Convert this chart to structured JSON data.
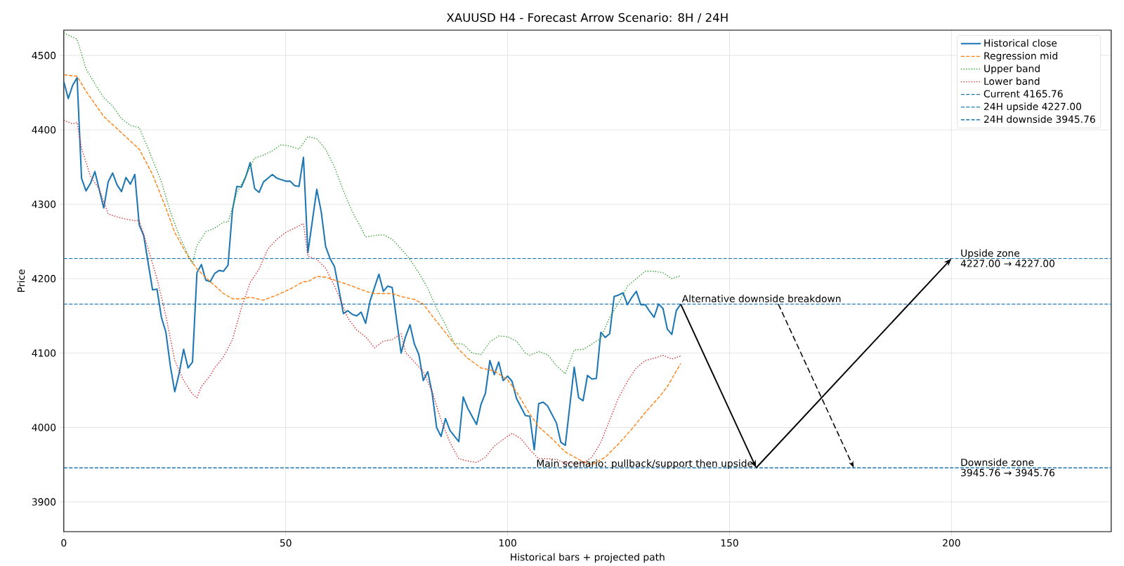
{
  "chart_data": {
    "type": "line",
    "title": "XAUUSD H4 - Forecast Arrow Scenario: 8H / 24H",
    "xlabel": "Historical bars + projected path",
    "ylabel": "Price",
    "xlim": [
      0,
      236
    ],
    "ylim": [
      3860,
      4534
    ],
    "xticks": [
      0,
      50,
      100,
      150,
      200
    ],
    "yticks": [
      3900,
      4000,
      4100,
      4200,
      4300,
      4400,
      4500
    ],
    "grid": true,
    "legend": "top right",
    "series": [
      {
        "name": "Historical close",
        "color": "#1f77b4",
        "line_style": "solid",
        "x": [
          0,
          1,
          2,
          3,
          4,
          5,
          6,
          7,
          9,
          10,
          11,
          12,
          13,
          14,
          15,
          16,
          17,
          18,
          20,
          21,
          22,
          23,
          24,
          25,
          26,
          27,
          28,
          29,
          30,
          31,
          32,
          33,
          34,
          35,
          36,
          37,
          38,
          39,
          40,
          41,
          42,
          43,
          44,
          45,
          47,
          48,
          50,
          51,
          52,
          53,
          54,
          55,
          57,
          58,
          59,
          60,
          61,
          62,
          63,
          64,
          65,
          66,
          67,
          68,
          69,
          71,
          72,
          73,
          74,
          76,
          77,
          78,
          79,
          80,
          81,
          82,
          83,
          84,
          85,
          86,
          87,
          89,
          90,
          91,
          93,
          94,
          95,
          96,
          97,
          98,
          99,
          100,
          101,
          102,
          104,
          105,
          106,
          107,
          108,
          109,
          111,
          112,
          113,
          115,
          116,
          117,
          118,
          119,
          120,
          121,
          122,
          123,
          124,
          125,
          126,
          127,
          128,
          129,
          130,
          131,
          132,
          133,
          134,
          135,
          136,
          137,
          138,
          139
        ],
        "values": [
          4465,
          4442,
          4460,
          4470,
          4335,
          4318,
          4328,
          4344,
          4295,
          4330,
          4342,
          4326,
          4317,
          4336,
          4327,
          4340,
          4272,
          4258,
          4185,
          4186,
          4148,
          4128,
          4083,
          4048,
          4073,
          4105,
          4080,
          4088,
          4208,
          4219,
          4198,
          4196,
          4207,
          4211,
          4210,
          4218,
          4292,
          4324,
          4323,
          4337,
          4356,
          4321,
          4316,
          4330,
          4340,
          4335,
          4331,
          4331,
          4325,
          4324,
          4363,
          4235,
          4320,
          4290,
          4243,
          4227,
          4216,
          4185,
          4153,
          4157,
          4152,
          4150,
          4155,
          4140,
          4170,
          4206,
          4183,
          4190,
          4188,
          4100,
          4122,
          4138,
          4112,
          4098,
          4063,
          4075,
          4046,
          4000,
          3988,
          4012,
          3996,
          3981,
          4041,
          4026,
          4004,
          4031,
          4046,
          4090,
          4071,
          4088,
          4063,
          4069,
          4062,
          4039,
          4016,
          4015,
          3970,
          4032,
          4034,
          4029,
          4006,
          3980,
          3976,
          4081,
          4040,
          4036,
          4070,
          4065,
          4066,
          4128,
          4121,
          4126,
          4176,
          4178,
          4181,
          4165,
          4175,
          4183,
          4165,
          4165,
          4156,
          4148,
          4166,
          4160,
          4132,
          4125,
          4157,
          4165.76
        ]
      },
      {
        "name": "Regression mid",
        "color": "#ff7f0e",
        "line_style": "dashed",
        "x": [
          0,
          3,
          5,
          9,
          13,
          17,
          20,
          23,
          25,
          28,
          30,
          33,
          36,
          38,
          40,
          42,
          45,
          48,
          51,
          54,
          55,
          57,
          59,
          62,
          65,
          68,
          70,
          74,
          76,
          79,
          81,
          83,
          85,
          89,
          91,
          94,
          97,
          100,
          102,
          105,
          107,
          110,
          113,
          117,
          119,
          122,
          125,
          128,
          131,
          134,
          136,
          139
        ],
        "values": [
          4474,
          4472,
          4452,
          4418,
          4396,
          4374,
          4340,
          4295,
          4262,
          4230,
          4213,
          4196,
          4180,
          4173,
          4173,
          4175,
          4171,
          4178,
          4186,
          4196,
          4196,
          4203,
          4202,
          4196,
          4190,
          4183,
          4180,
          4180,
          4176,
          4172,
          4166,
          4150,
          4135,
          4105,
          4093,
          4080,
          4076,
          4064,
          4048,
          4018,
          4001,
          3985,
          3967,
          3954,
          3950,
          3960,
          3978,
          3998,
          4020,
          4040,
          4055,
          4086
        ]
      },
      {
        "name": "Upper band",
        "color": "#2ca02c",
        "line_style": "dotted",
        "x": [
          0,
          3,
          5,
          7,
          9,
          11,
          13,
          15,
          17,
          19,
          22,
          24,
          26,
          28,
          29,
          30,
          32,
          34,
          36,
          37,
          39,
          41,
          43,
          45,
          47,
          49,
          51,
          53,
          55,
          57,
          59,
          61,
          63,
          65,
          67,
          68,
          70,
          72,
          74,
          76,
          78,
          80,
          82,
          84,
          86,
          88,
          90,
          92,
          94,
          96,
          98,
          100,
          102,
          104,
          105,
          107,
          109,
          111,
          113,
          115,
          117,
          119,
          121,
          123,
          125,
          127,
          129,
          131,
          133,
          135,
          137,
          139
        ],
        "values": [
          4530,
          4522,
          4482,
          4462,
          4443,
          4432,
          4415,
          4406,
          4403,
          4375,
          4330,
          4290,
          4258,
          4232,
          4220,
          4245,
          4263,
          4268,
          4276,
          4276,
          4315,
          4338,
          4362,
          4366,
          4372,
          4380,
          4378,
          4374,
          4391,
          4388,
          4374,
          4350,
          4318,
          4290,
          4268,
          4256,
          4258,
          4259,
          4253,
          4240,
          4226,
          4208,
          4187,
          4160,
          4138,
          4113,
          4112,
          4100,
          4098,
          4115,
          4123,
          4122,
          4116,
          4100,
          4097,
          4102,
          4098,
          4083,
          4072,
          4104,
          4105,
          4112,
          4120,
          4148,
          4167,
          4190,
          4200,
          4210,
          4210,
          4208,
          4200,
          4204
        ]
      },
      {
        "name": "Lower band",
        "color": "#d62728",
        "line_style": "dotted",
        "x": [
          0,
          2,
          3,
          4,
          6,
          8,
          10,
          12,
          14,
          16,
          17,
          19,
          21,
          23,
          25,
          27,
          29,
          30,
          31,
          33,
          34,
          36,
          38,
          40,
          42,
          44,
          46,
          48,
          50,
          52,
          54,
          55,
          57,
          59,
          61,
          63,
          64,
          66,
          68,
          70,
          72,
          74,
          76,
          77,
          79,
          81,
          83,
          85,
          87,
          89,
          91,
          93,
          95,
          97,
          99,
          101,
          103,
          105,
          107,
          109,
          111,
          113,
          115,
          117,
          119,
          121,
          123,
          125,
          127,
          129,
          131,
          133,
          135,
          137,
          139
        ],
        "values": [
          4413,
          4408,
          4410,
          4375,
          4338,
          4320,
          4287,
          4283,
          4280,
          4278,
          4278,
          4240,
          4200,
          4150,
          4090,
          4063,
          4045,
          4040,
          4055,
          4070,
          4080,
          4095,
          4118,
          4160,
          4195,
          4213,
          4240,
          4253,
          4262,
          4268,
          4274,
          4230,
          4226,
          4214,
          4190,
          4162,
          4147,
          4131,
          4122,
          4107,
          4116,
          4118,
          4126,
          4101,
          4088,
          4075,
          4048,
          4010,
          3980,
          3958,
          3955,
          3953,
          3960,
          3975,
          3984,
          3992,
          3985,
          3970,
          3958,
          3958,
          3957,
          3952,
          3952,
          3952,
          3960,
          3980,
          4010,
          4040,
          4062,
          4080,
          4090,
          4093,
          4097,
          4092,
          4096
        ]
      }
    ],
    "ref_lines": [
      {
        "axis": "y",
        "value": 4165.76,
        "label": "Current 4165.76",
        "color": "#1f77b4",
        "line_style": "dashed"
      },
      {
        "axis": "y",
        "value": 4227.0,
        "label": "24H upside 4227.00",
        "color": "#1f77b4",
        "line_style": "dashed"
      },
      {
        "axis": "y",
        "value": 3945.76,
        "label": "24H downside 3945.76",
        "color": "#1f77b4",
        "line_style": "dashed"
      }
    ],
    "annotations": [
      {
        "text": "Main scenario: pullback/support then upside",
        "x": 156,
        "y": 3945.76
      },
      {
        "text": "Alternative downside breakdown",
        "x": 139,
        "y": 4165.76
      },
      {
        "text": "Upside zone",
        "x": 200,
        "y": 4227.0
      },
      {
        "text": "4227.00 → 4227.00",
        "x": 200,
        "y": 4227.0
      },
      {
        "text": "Downside zone",
        "x": 200,
        "y": 3945.76
      },
      {
        "text": "3945.76 → 3945.76",
        "x": 200,
        "y": 3945.76
      }
    ]
  }
}
